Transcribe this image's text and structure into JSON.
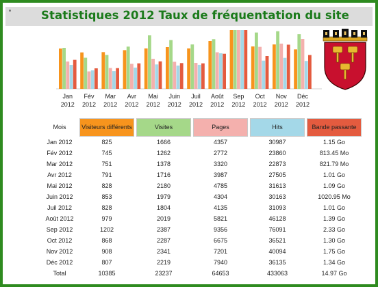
{
  "title": "Statistiques 2012 Taux de fréquentation du site",
  "colors": {
    "visiteurs": "#f7941d",
    "visites": "#a5d889",
    "pages": "#f4b0ad",
    "hits": "#a4d8e8",
    "bande": "#e45b3f",
    "frame": "#2e8b1f",
    "title": "#1a7a1a"
  },
  "crest": {
    "icon": "coat-of-arms-icon"
  },
  "chart_data": {
    "type": "bar",
    "categories": [
      [
        "Jan",
        "2012"
      ],
      [
        "Fév",
        "2012"
      ],
      [
        "Mar",
        "2012"
      ],
      [
        "Avr",
        "2012"
      ],
      [
        "Mai",
        "2012"
      ],
      [
        "Juin",
        "2012"
      ],
      [
        "Juil",
        "2012"
      ],
      [
        "Août",
        "2012"
      ],
      [
        "Sep",
        "2012"
      ],
      [
        "Oct",
        "2012"
      ],
      [
        "Nov",
        "2012"
      ],
      [
        "Déc",
        "2012"
      ]
    ],
    "series": [
      {
        "name": "Visiteurs différents",
        "values": [
          825,
          745,
          751,
          791,
          828,
          853,
          828,
          979,
          1202,
          868,
          908,
          807
        ]
      },
      {
        "name": "Visites",
        "values": [
          1666,
          1262,
          1378,
          1716,
          2180,
          1979,
          1804,
          2019,
          2387,
          2287,
          2341,
          2219
        ]
      },
      {
        "name": "Pages",
        "values": [
          4357,
          2772,
          3320,
          3987,
          4785,
          4304,
          4135,
          5821,
          9356,
          6675,
          7201,
          7940
        ]
      },
      {
        "name": "Hits",
        "values": [
          30987,
          23860,
          22873,
          27505,
          31613,
          30163,
          31093,
          46128,
          76091,
          36521,
          40094,
          36135
        ]
      },
      {
        "name": "Bande passante",
        "values": [
          1.15,
          0.81345,
          0.82179,
          1.01,
          1.09,
          1.02095,
          1.01,
          1.39,
          2.33,
          1.3,
          1.75,
          1.34
        ],
        "unit": "Go"
      }
    ]
  },
  "table": {
    "headers": [
      "Mois",
      "Visiteurs différents",
      "Visites",
      "Pages",
      "Hits",
      "Bande passante"
    ],
    "rows": [
      [
        "Jan 2012",
        "825",
        "1666",
        "4357",
        "30987",
        "1.15 Go"
      ],
      [
        "Fév 2012",
        "745",
        "1262",
        "2772",
        "23860",
        "813.45 Mo"
      ],
      [
        "Mar 2012",
        "751",
        "1378",
        "3320",
        "22873",
        "821.79 Mo"
      ],
      [
        "Avr 2012",
        "791",
        "1716",
        "3987",
        "27505",
        "1.01 Go"
      ],
      [
        "Mai 2012",
        "828",
        "2180",
        "4785",
        "31613",
        "1.09 Go"
      ],
      [
        "Juin 2012",
        "853",
        "1979",
        "4304",
        "30163",
        "1020.95 Mo"
      ],
      [
        "Juil 2012",
        "828",
        "1804",
        "4135",
        "31093",
        "1.01 Go"
      ],
      [
        "Août 2012",
        "979",
        "2019",
        "5821",
        "46128",
        "1.39 Go"
      ],
      [
        "Sep 2012",
        "1202",
        "2387",
        "9356",
        "76091",
        "2.33 Go"
      ],
      [
        "Oct 2012",
        "868",
        "2287",
        "6675",
        "36521",
        "1.30 Go"
      ],
      [
        "Nov 2012",
        "908",
        "2341",
        "7201",
        "40094",
        "1.75 Go"
      ],
      [
        "Déc 2012",
        "807",
        "2219",
        "7940",
        "36135",
        "1.34 Go"
      ]
    ],
    "total": [
      "Total",
      "10385",
      "23237",
      "64653",
      "433063",
      "14.97 Go"
    ]
  }
}
